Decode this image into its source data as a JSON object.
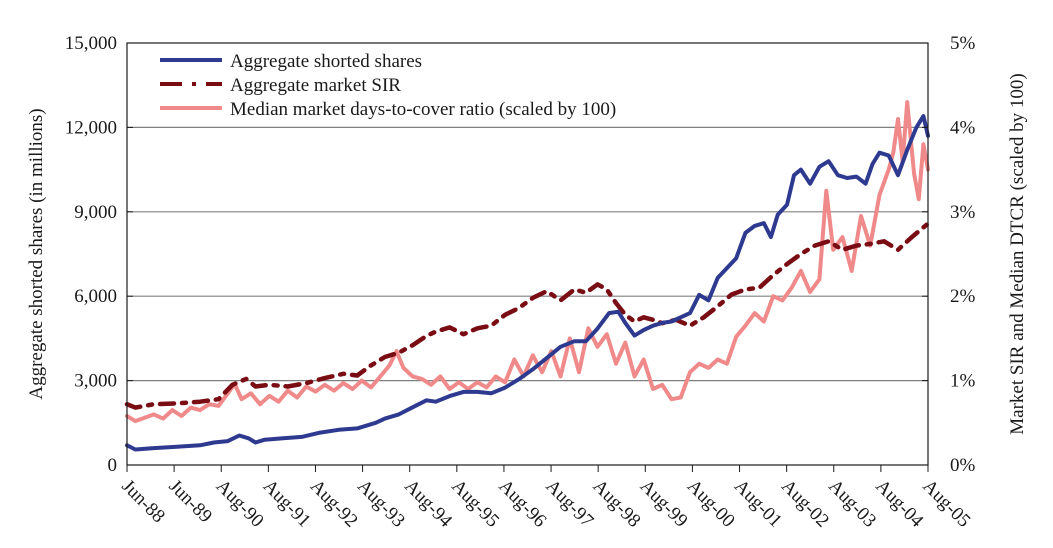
{
  "chart_data": {
    "type": "line",
    "title": "",
    "ylabel": "Aggregate shorted shares (in millions)",
    "y2label": "Market SIR and Median DTCR (scaled by 100)",
    "xlabel": "",
    "x_tick_labels": [
      "Jun-88",
      "Jun-89",
      "Aug-90",
      "Aug-91",
      "Aug-92",
      "Aug-93",
      "Aug-94",
      "Aug-95",
      "Aug-96",
      "Aug-97",
      "Aug-98",
      "Aug-99",
      "Aug-00",
      "Aug-01",
      "Aug-02",
      "Aug-03",
      "Aug-04",
      "Aug-05"
    ],
    "y_tick_labels": [
      "0",
      "3,000",
      "6,000",
      "9,000",
      "12,000",
      "15,000"
    ],
    "y2_tick_labels": [
      "0%",
      "1%",
      "2%",
      "3%",
      "4%",
      "5%"
    ],
    "ylim": [
      0,
      15000
    ],
    "y2lim": [
      0,
      5
    ],
    "xlim": [
      1988.42,
      2005.75
    ],
    "grid": true,
    "legend_position": "top-left",
    "colors": {
      "shorted": "#2e3a8f",
      "sir": "#7a0c14",
      "dtcr": "#f08a8a",
      "grid": "#808080"
    },
    "series": [
      {
        "name": "Aggregate shorted shares",
        "axis": "left",
        "style": "solid",
        "points": [
          [
            1988.42,
            700
          ],
          [
            1988.6,
            550
          ],
          [
            1989.0,
            600
          ],
          [
            1989.5,
            650
          ],
          [
            1990.0,
            700
          ],
          [
            1990.3,
            800
          ],
          [
            1990.6,
            850
          ],
          [
            1990.85,
            1050
          ],
          [
            1991.05,
            950
          ],
          [
            1991.2,
            800
          ],
          [
            1991.4,
            900
          ],
          [
            1991.8,
            950
          ],
          [
            1992.2,
            1000
          ],
          [
            1992.6,
            1150
          ],
          [
            1993.0,
            1250
          ],
          [
            1993.4,
            1300
          ],
          [
            1993.8,
            1500
          ],
          [
            1994.0,
            1650
          ],
          [
            1994.3,
            1800
          ],
          [
            1994.6,
            2050
          ],
          [
            1994.9,
            2300
          ],
          [
            1995.1,
            2250
          ],
          [
            1995.4,
            2450
          ],
          [
            1995.7,
            2600
          ],
          [
            1996.0,
            2600
          ],
          [
            1996.3,
            2550
          ],
          [
            1996.6,
            2750
          ],
          [
            1996.9,
            3050
          ],
          [
            1997.2,
            3400
          ],
          [
            1997.5,
            3800
          ],
          [
            1997.8,
            4200
          ],
          [
            1998.1,
            4400
          ],
          [
            1998.35,
            4400
          ],
          [
            1998.6,
            4850
          ],
          [
            1998.85,
            5400
          ],
          [
            1999.05,
            5450
          ],
          [
            1999.2,
            5050
          ],
          [
            1999.4,
            4600
          ],
          [
            1999.6,
            4800
          ],
          [
            1999.8,
            4950
          ],
          [
            2000.0,
            5050
          ],
          [
            2000.2,
            5100
          ],
          [
            2000.4,
            5250
          ],
          [
            2000.6,
            5400
          ],
          [
            2000.8,
            6050
          ],
          [
            2001.0,
            5850
          ],
          [
            2001.2,
            6650
          ],
          [
            2001.4,
            7000
          ],
          [
            2001.6,
            7350
          ],
          [
            2001.8,
            8250
          ],
          [
            2002.0,
            8500
          ],
          [
            2002.2,
            8600
          ],
          [
            2002.35,
            8100
          ],
          [
            2002.5,
            8900
          ],
          [
            2002.7,
            9250
          ],
          [
            2002.85,
            10300
          ],
          [
            2003.0,
            10500
          ],
          [
            2003.2,
            10000
          ],
          [
            2003.4,
            10600
          ],
          [
            2003.6,
            10800
          ],
          [
            2003.8,
            10300
          ],
          [
            2004.0,
            10200
          ],
          [
            2004.2,
            10250
          ],
          [
            2004.4,
            10000
          ],
          [
            2004.55,
            10700
          ],
          [
            2004.7,
            11100
          ],
          [
            2004.9,
            11000
          ],
          [
            2005.1,
            10300
          ],
          [
            2005.3,
            11200
          ],
          [
            2005.5,
            12000
          ],
          [
            2005.65,
            12400
          ],
          [
            2005.75,
            11700
          ]
        ]
      },
      {
        "name": "Aggregate market SIR",
        "axis": "right",
        "style": "dash-dot",
        "points": [
          [
            1988.42,
            0.72
          ],
          [
            1988.6,
            0.68
          ],
          [
            1989.0,
            0.72
          ],
          [
            1989.5,
            0.73
          ],
          [
            1990.0,
            0.75
          ],
          [
            1990.4,
            0.78
          ],
          [
            1990.7,
            0.95
          ],
          [
            1991.0,
            1.02
          ],
          [
            1991.2,
            0.93
          ],
          [
            1991.5,
            0.95
          ],
          [
            1991.9,
            0.93
          ],
          [
            1992.3,
            0.97
          ],
          [
            1992.7,
            1.03
          ],
          [
            1993.1,
            1.08
          ],
          [
            1993.4,
            1.06
          ],
          [
            1993.7,
            1.18
          ],
          [
            1994.0,
            1.28
          ],
          [
            1994.3,
            1.33
          ],
          [
            1994.6,
            1.42
          ],
          [
            1994.9,
            1.53
          ],
          [
            1995.1,
            1.58
          ],
          [
            1995.4,
            1.63
          ],
          [
            1995.7,
            1.55
          ],
          [
            1996.0,
            1.62
          ],
          [
            1996.3,
            1.65
          ],
          [
            1996.6,
            1.78
          ],
          [
            1996.9,
            1.86
          ],
          [
            1997.2,
            1.98
          ],
          [
            1997.5,
            2.06
          ],
          [
            1997.8,
            1.95
          ],
          [
            1998.1,
            2.08
          ],
          [
            1998.35,
            2.04
          ],
          [
            1998.6,
            2.14
          ],
          [
            1998.8,
            2.08
          ],
          [
            1999.0,
            1.92
          ],
          [
            1999.2,
            1.78
          ],
          [
            1999.4,
            1.7
          ],
          [
            1999.6,
            1.75
          ],
          [
            1999.8,
            1.72
          ],
          [
            2000.0,
            1.68
          ],
          [
            2000.3,
            1.72
          ],
          [
            2000.6,
            1.65
          ],
          [
            2000.9,
            1.75
          ],
          [
            2001.2,
            1.88
          ],
          [
            2001.5,
            2.02
          ],
          [
            2001.8,
            2.08
          ],
          [
            2002.1,
            2.1
          ],
          [
            2002.4,
            2.25
          ],
          [
            2002.7,
            2.38
          ],
          [
            2003.0,
            2.5
          ],
          [
            2003.3,
            2.6
          ],
          [
            2003.6,
            2.65
          ],
          [
            2003.9,
            2.55
          ],
          [
            2004.2,
            2.6
          ],
          [
            2004.5,
            2.62
          ],
          [
            2004.8,
            2.65
          ],
          [
            2005.1,
            2.55
          ],
          [
            2005.4,
            2.7
          ],
          [
            2005.75,
            2.86
          ]
        ]
      },
      {
        "name": "Median market days-to-cover ratio (scaled by 100)",
        "axis": "right",
        "style": "solid",
        "points": [
          [
            1988.42,
            0.58
          ],
          [
            1988.6,
            0.52
          ],
          [
            1988.8,
            0.56
          ],
          [
            1989.0,
            0.6
          ],
          [
            1989.2,
            0.55
          ],
          [
            1989.4,
            0.65
          ],
          [
            1989.6,
            0.58
          ],
          [
            1989.8,
            0.68
          ],
          [
            1990.0,
            0.65
          ],
          [
            1990.2,
            0.72
          ],
          [
            1990.4,
            0.7
          ],
          [
            1990.6,
            0.85
          ],
          [
            1990.75,
            0.96
          ],
          [
            1990.9,
            0.78
          ],
          [
            1991.1,
            0.85
          ],
          [
            1991.3,
            0.72
          ],
          [
            1991.5,
            0.82
          ],
          [
            1991.7,
            0.75
          ],
          [
            1991.9,
            0.88
          ],
          [
            1992.1,
            0.8
          ],
          [
            1992.3,
            0.93
          ],
          [
            1992.5,
            0.87
          ],
          [
            1992.7,
            0.95
          ],
          [
            1992.9,
            0.88
          ],
          [
            1993.1,
            0.97
          ],
          [
            1993.3,
            0.9
          ],
          [
            1993.5,
            1.0
          ],
          [
            1993.7,
            0.92
          ],
          [
            1993.9,
            1.05
          ],
          [
            1994.1,
            1.18
          ],
          [
            1994.25,
            1.35
          ],
          [
            1994.4,
            1.15
          ],
          [
            1994.6,
            1.05
          ],
          [
            1994.8,
            1.02
          ],
          [
            1995.0,
            0.95
          ],
          [
            1995.2,
            1.05
          ],
          [
            1995.4,
            0.9
          ],
          [
            1995.6,
            0.98
          ],
          [
            1995.8,
            0.9
          ],
          [
            1996.0,
            0.98
          ],
          [
            1996.2,
            0.92
          ],
          [
            1996.4,
            1.05
          ],
          [
            1996.6,
            0.98
          ],
          [
            1996.8,
            1.25
          ],
          [
            1997.0,
            1.05
          ],
          [
            1997.2,
            1.3
          ],
          [
            1997.4,
            1.1
          ],
          [
            1997.6,
            1.35
          ],
          [
            1997.8,
            1.05
          ],
          [
            1998.0,
            1.5
          ],
          [
            1998.2,
            1.1
          ],
          [
            1998.4,
            1.62
          ],
          [
            1998.6,
            1.4
          ],
          [
            1998.8,
            1.55
          ],
          [
            1999.0,
            1.2
          ],
          [
            1999.2,
            1.45
          ],
          [
            1999.4,
            1.05
          ],
          [
            1999.6,
            1.25
          ],
          [
            1999.8,
            0.9
          ],
          [
            2000.0,
            0.95
          ],
          [
            2000.2,
            0.78
          ],
          [
            2000.4,
            0.8
          ],
          [
            2000.6,
            1.1
          ],
          [
            2000.8,
            1.2
          ],
          [
            2001.0,
            1.15
          ],
          [
            2001.2,
            1.25
          ],
          [
            2001.4,
            1.2
          ],
          [
            2001.6,
            1.52
          ],
          [
            2001.8,
            1.65
          ],
          [
            2002.0,
            1.8
          ],
          [
            2002.2,
            1.7
          ],
          [
            2002.4,
            2.0
          ],
          [
            2002.6,
            1.95
          ],
          [
            2002.8,
            2.1
          ],
          [
            2003.0,
            2.3
          ],
          [
            2003.2,
            2.05
          ],
          [
            2003.4,
            2.2
          ],
          [
            2003.55,
            3.25
          ],
          [
            2003.7,
            2.55
          ],
          [
            2003.9,
            2.7
          ],
          [
            2004.1,
            2.3
          ],
          [
            2004.3,
            2.95
          ],
          [
            2004.5,
            2.6
          ],
          [
            2004.7,
            3.2
          ],
          [
            2004.9,
            3.5
          ],
          [
            2005.0,
            3.7
          ],
          [
            2005.1,
            4.1
          ],
          [
            2005.2,
            3.6
          ],
          [
            2005.3,
            4.3
          ],
          [
            2005.45,
            3.45
          ],
          [
            2005.55,
            3.15
          ],
          [
            2005.65,
            3.8
          ],
          [
            2005.75,
            3.5
          ],
          [
            2005.85,
            3.95
          ],
          [
            2006.0,
            4.2
          ],
          [
            2006.15,
            4.0
          ],
          [
            2006.3,
            4.15
          ],
          [
            2006.45,
            4.05
          ],
          [
            2006.6,
            4.25
          ]
        ]
      }
    ]
  }
}
